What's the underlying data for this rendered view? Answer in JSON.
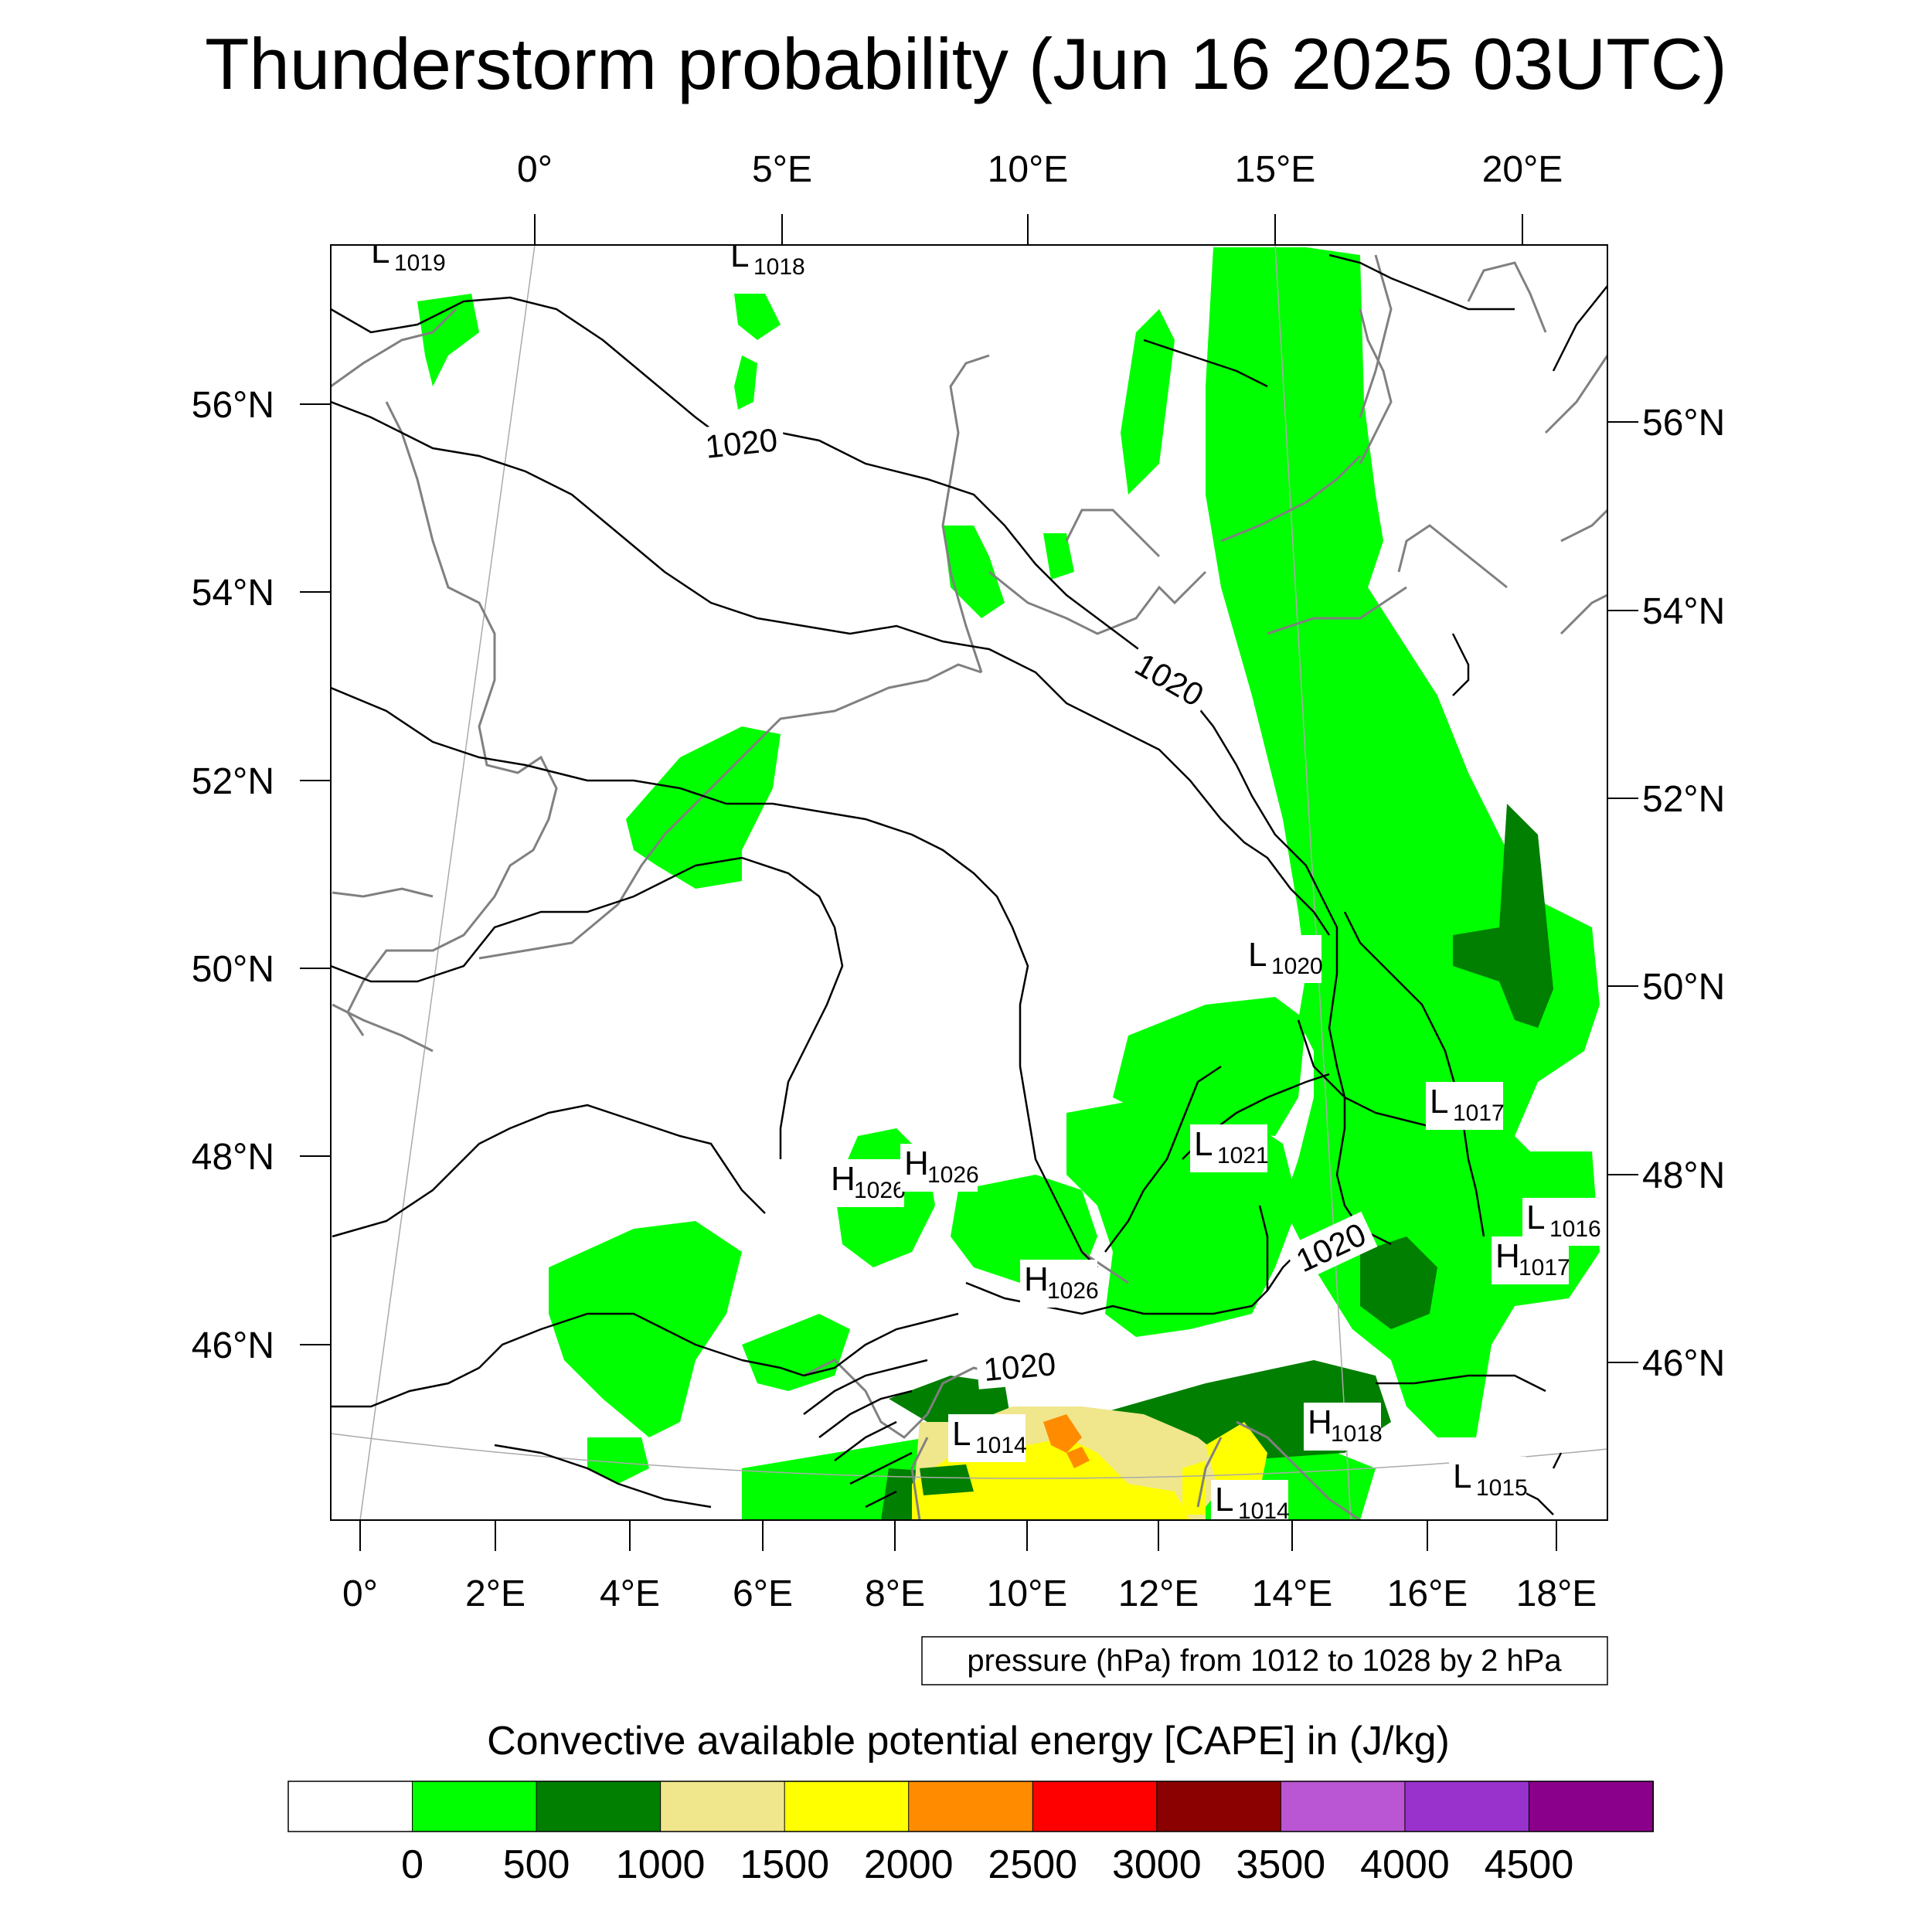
{
  "title": "Thunderstorm probability (Jun 16 2025 03UTC)",
  "map": {
    "top_lon_labels": [
      "0°",
      "5°E",
      "10°E",
      "15°E",
      "20°E"
    ],
    "bottom_lon_labels": [
      "0°",
      "2°E",
      "4°E",
      "6°E",
      "8°E",
      "10°E",
      "12°E",
      "14°E",
      "16°E",
      "18°E"
    ],
    "left_lat_labels": [
      "56°N",
      "54°N",
      "52°N",
      "50°N",
      "48°N",
      "46°N"
    ],
    "right_lat_labels": [
      "56°N",
      "54°N",
      "52°N",
      "50°N",
      "48°N",
      "46°N"
    ],
    "pressure_centers": [
      {
        "letter": "L",
        "value": "1019"
      },
      {
        "letter": "L",
        "value": "1018"
      },
      {
        "letter": "L",
        "value": "1020"
      },
      {
        "letter": "L",
        "value": "1017"
      },
      {
        "letter": "L",
        "value": "1021"
      },
      {
        "letter": "H",
        "value": "1026"
      },
      {
        "letter": "H",
        "value": "1026"
      },
      {
        "letter": "L",
        "value": "1016"
      },
      {
        "letter": "H",
        "value": "1017"
      },
      {
        "letter": "H",
        "value": "1026"
      },
      {
        "letter": "L",
        "value": "1014"
      },
      {
        "letter": "H",
        "value": "1018"
      },
      {
        "letter": "L",
        "value": "1014"
      },
      {
        "letter": "L",
        "value": "1015"
      }
    ],
    "isobar_labels": [
      "1020",
      "1020",
      "1020",
      "1020"
    ],
    "note": "pressure (hPa) from 1012 to 1028 by 2 hPa"
  },
  "colorbar": {
    "title": "Convective available potential energy [CAPE] in (J/kg)",
    "colors": [
      "#ffffff",
      "#00ff00",
      "#007f00",
      "#f0e68c",
      "#ffff00",
      "#ff8c00",
      "#ff0000",
      "#8b0000",
      "#ba55d3",
      "#9932cc",
      "#8b008b"
    ],
    "labels": [
      "0",
      "500",
      "1000",
      "1500",
      "2000",
      "2500",
      "3000",
      "3500",
      "4000",
      "4500"
    ]
  }
}
